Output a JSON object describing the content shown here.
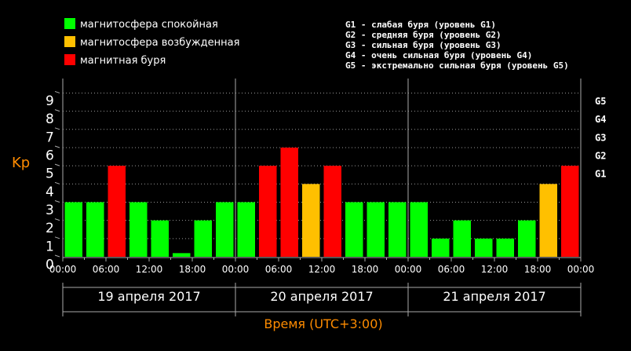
{
  "legend": {
    "items": [
      {
        "label": "магнитосфера спокойная",
        "color": "#00ff00"
      },
      {
        "label": "магнитосфера возбужденная",
        "color": "#ffc000"
      },
      {
        "label": "магнитная буря",
        "color": "#ff0000"
      }
    ],
    "levels": [
      "G1 - слабая буря (уровень G1)",
      "G2 - средняя буря (уровень G2)",
      "G3 - сильная буря (уровень G3)",
      "G4 - очень сильная буря (уровень G4)",
      "G5 - экстремально сильная буря (уровень G5)"
    ]
  },
  "chart_data": {
    "type": "bar",
    "ylabel": "Kp",
    "xlabel": "Время (UTC+3:00)",
    "ylim": [
      0,
      9
    ],
    "y_ticks": [
      "0",
      "1",
      "2",
      "3",
      "4",
      "5",
      "6",
      "7",
      "8",
      "9"
    ],
    "g_ticks": [
      {
        "label": "G1",
        "kp": 5
      },
      {
        "label": "G2",
        "kp": 6
      },
      {
        "label": "G3",
        "kp": 7
      },
      {
        "label": "G4",
        "kp": 8
      },
      {
        "label": "G5",
        "kp": 9
      }
    ],
    "x_ticks": [
      "00:00",
      "06:00",
      "12:00",
      "18:00",
      "00:00",
      "06:00",
      "12:00",
      "18:00",
      "00:00",
      "06:00",
      "12:00",
      "18:00",
      "00:00"
    ],
    "days": [
      "19 апреля 2017",
      "20 апреля 2017",
      "21 апреля 2017"
    ],
    "values": [
      3,
      3,
      5,
      3,
      2,
      0.2,
      2,
      3,
      3,
      5,
      6,
      4,
      5,
      3,
      3,
      3,
      3,
      1,
      2,
      1,
      1,
      2,
      4,
      5
    ],
    "colors": {
      "quiet": "#00ff00",
      "active": "#ffc000",
      "storm": "#ff0000"
    },
    "grid": true
  }
}
